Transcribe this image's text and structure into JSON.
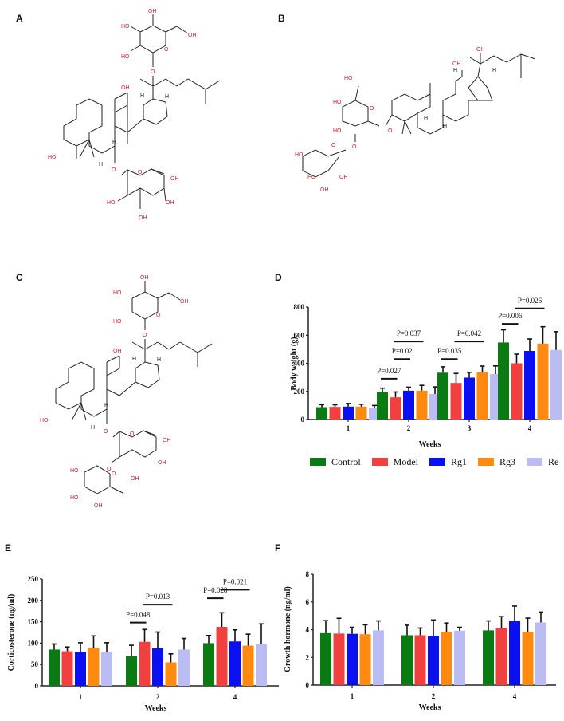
{
  "panels": {
    "A": {
      "label": "A",
      "type": "chemical-structure",
      "atom_labels": [
        "OH",
        "HO",
        "HO",
        "O",
        "OH",
        "O",
        "OH",
        "H",
        "H",
        "HO",
        "H",
        "H",
        "O",
        "O",
        "OH",
        "HO",
        "OH",
        "OH"
      ]
    },
    "B": {
      "label": "B",
      "type": "chemical-structure",
      "atom_labels": [
        "OH",
        "OH",
        "HO",
        "O",
        "HO",
        "HO",
        "O",
        "O",
        "HO",
        "O",
        "HO",
        "OH",
        "OH",
        "H",
        "H",
        "H",
        "H"
      ]
    },
    "C": {
      "label": "C",
      "type": "chemical-structure",
      "atom_labels": [
        "OH",
        "HO",
        "HO",
        "O",
        "OH",
        "O",
        "OH",
        "H",
        "H",
        "HO",
        "H",
        "H",
        "O",
        "O",
        "OH",
        "O",
        "OH",
        "OH",
        "HO",
        "O",
        "HO",
        "OH"
      ]
    },
    "D": {
      "label": "D"
    },
    "E": {
      "label": "E"
    },
    "F": {
      "label": "F"
    }
  },
  "legend": {
    "items": [
      {
        "name": "Control",
        "color": "#0a7a12"
      },
      {
        "name": "Model",
        "color": "#f04040"
      },
      {
        "name": "Rg1",
        "color": "#0a10f0"
      },
      {
        "name": "Rg3",
        "color": "#ff8a10"
      },
      {
        "name": "Re",
        "color": "#bcbcf4"
      }
    ]
  },
  "chart_data": [
    {
      "id": "D",
      "type": "bar",
      "title": "",
      "xlabel": "Weeks",
      "ylabel": "Body weight (g)",
      "ylim": [
        0,
        800
      ],
      "yticks": [
        0,
        200,
        400,
        600,
        800
      ],
      "categories": [
        "1",
        "2",
        "3",
        "4"
      ],
      "series": [
        {
          "name": "Control",
          "values": [
            88,
            198,
            333,
            548
          ],
          "errors": [
            18,
            25,
            42,
            90
          ]
        },
        {
          "name": "Model",
          "values": [
            90,
            158,
            260,
            400
          ],
          "errors": [
            15,
            38,
            68,
            65
          ]
        },
        {
          "name": "Rg1",
          "values": [
            92,
            205,
            298,
            488
          ],
          "errors": [
            22,
            25,
            38,
            85
          ]
        },
        {
          "name": "Rg3",
          "values": [
            92,
            205,
            335,
            540
          ],
          "errors": [
            17,
            38,
            45,
            120
          ]
        },
        {
          "name": "Re",
          "values": [
            82,
            182,
            323,
            495
          ],
          "errors": [
            18,
            50,
            58,
            130
          ]
        }
      ],
      "annotations": [
        {
          "text": "P=0.027",
          "week": "2",
          "from": "Control",
          "to": "Model",
          "y": 290
        },
        {
          "text": "P=0.02",
          "week": "2",
          "from": "Model",
          "to": "Rg1",
          "y": 430
        },
        {
          "text": "P=0.037",
          "week": "2",
          "from": "Model",
          "to": "Rg3",
          "y": 555
        },
        {
          "text": "P=0.035",
          "week": "3",
          "from": "Control",
          "to": "Model",
          "y": 430
        },
        {
          "text": "P=0.042",
          "week": "3",
          "from": "Model",
          "to": "Rg3",
          "y": 555
        },
        {
          "text": "P=0.006",
          "week": "4",
          "from": "Control",
          "to": "Model",
          "y": 680
        },
        {
          "text": "P=0.026",
          "week": "4",
          "from": "Model",
          "to": "Rg3",
          "y": 790
        }
      ],
      "legend_position": "bottom",
      "grid": false
    },
    {
      "id": "E",
      "type": "bar",
      "title": "",
      "xlabel": "Weeks",
      "ylabel": "Corticosterone (ng/ml)",
      "ylim": [
        0,
        250
      ],
      "yticks": [
        0,
        50,
        100,
        150,
        200,
        250
      ],
      "categories": [
        "1",
        "2",
        "4"
      ],
      "series": [
        {
          "name": "Control",
          "values": [
            85,
            69,
            100
          ],
          "errors": [
            13,
            26,
            18
          ]
        },
        {
          "name": "Model",
          "values": [
            81,
            103,
            138
          ],
          "errors": [
            10,
            29,
            33
          ]
        },
        {
          "name": "Rg1",
          "values": [
            79,
            88,
            104
          ],
          "errors": [
            22,
            38,
            27
          ]
        },
        {
          "name": "Rg3",
          "values": [
            89,
            55,
            94
          ],
          "errors": [
            28,
            20,
            27
          ]
        },
        {
          "name": "Re",
          "values": [
            79,
            85,
            97
          ],
          "errors": [
            22,
            26,
            48
          ]
        }
      ],
      "annotations": [
        {
          "text": "P=0.048",
          "week": "2",
          "from": "Control",
          "to": "Model",
          "y": 148
        },
        {
          "text": "P=0.013",
          "week": "2",
          "from": "Model",
          "to": "Rg3",
          "y": 190
        },
        {
          "text": "P=0.028",
          "week": "4",
          "from": "Control",
          "to": "Model",
          "y": 205
        },
        {
          "text": "P=0.021",
          "week": "4",
          "from": "Model",
          "to": "Rg3",
          "y": 225
        }
      ],
      "grid": false
    },
    {
      "id": "F",
      "type": "bar",
      "title": "",
      "xlabel": "Weeks",
      "ylabel": "Growth hormone (ng/ml)",
      "ylim": [
        0,
        8
      ],
      "yticks": [
        0,
        2,
        4,
        6,
        8
      ],
      "categories": [
        "1",
        "2",
        "4"
      ],
      "series": [
        {
          "name": "Control",
          "values": [
            3.75,
            3.6,
            3.95
          ],
          "errors": [
            0.9,
            0.72,
            0.68
          ]
        },
        {
          "name": "Model",
          "values": [
            3.72,
            3.6,
            4.12
          ],
          "errors": [
            1.1,
            0.52,
            0.82
          ]
        },
        {
          "name": "Rg1",
          "values": [
            3.7,
            3.52,
            4.65
          ],
          "errors": [
            0.47,
            1.18,
            1.05
          ]
        },
        {
          "name": "Rg3",
          "values": [
            3.67,
            3.85,
            3.85
          ],
          "errors": [
            0.68,
            0.63,
            0.98
          ]
        },
        {
          "name": "Re",
          "values": [
            3.95,
            3.92,
            4.52
          ],
          "errors": [
            0.68,
            0.25,
            0.75
          ]
        }
      ],
      "annotations": [],
      "grid": false
    }
  ]
}
